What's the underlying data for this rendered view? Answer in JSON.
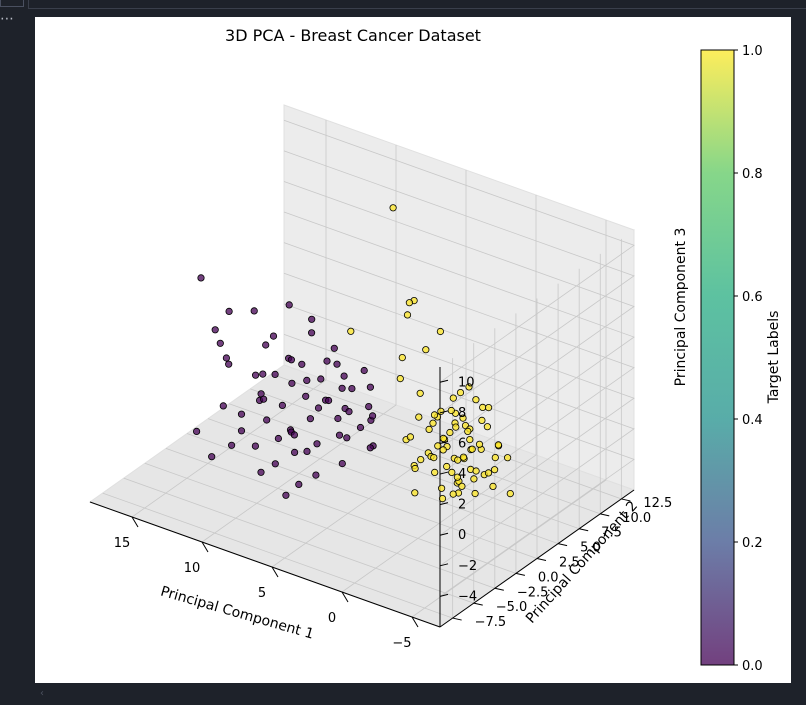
{
  "window": {
    "ellipsis": "⋯",
    "scroll_arrow": "‹"
  },
  "colors": {
    "background": "#1e222a",
    "figure": "#ffffff",
    "pane": "#f2f2f2",
    "grid": "#c8c8c8",
    "class0": "#440154",
    "class1": "#fde725"
  },
  "chart_data": {
    "type": "scatter3d",
    "title": "3D PCA - Breast Cancer Dataset",
    "xlabel": "Principal Component 1",
    "ylabel": "Principal Component 2",
    "zlabel": "Principal Component 3",
    "xlim": [
      -7,
      18
    ],
    "ylim": [
      -9,
      14
    ],
    "zlim": [
      -6,
      11
    ],
    "xticks": [
      -5,
      0,
      5,
      10,
      15
    ],
    "xtick_labels": [
      "−5",
      "0",
      "5",
      "10",
      "15"
    ],
    "yticks": [
      -7.5,
      -5.0,
      -2.5,
      0.0,
      2.5,
      5.0,
      7.5,
      10.0,
      12.5
    ],
    "ytick_labels": [
      "−7.5",
      "−5.0",
      "−2.5",
      "0.0",
      "2.5",
      "5.0",
      "7.5",
      "10.0",
      "12.5"
    ],
    "zticks": [
      -4,
      -2,
      0,
      2,
      4,
      6,
      8,
      10
    ],
    "ztick_labels": [
      "−4",
      "−2",
      "0",
      "2",
      "4",
      "6",
      "8",
      "10"
    ],
    "grid": true,
    "colormap": "viridis",
    "colorbar": {
      "label": "Target Labels",
      "range": [
        0.0,
        1.0
      ],
      "ticks": [
        0.0,
        0.2,
        0.4,
        0.6,
        0.8,
        1.0
      ],
      "tick_labels": [
        "0.0",
        "0.2",
        "0.4",
        "0.6",
        "0.8",
        "1.0"
      ]
    },
    "series": [
      {
        "target": 0,
        "color": "#440154",
        "points": [
          [
            8.2,
            -1.5,
            -1.0
          ],
          [
            10.1,
            -2.0,
            0.5
          ],
          [
            13.5,
            -0.3,
            1.5
          ],
          [
            17.0,
            2.5,
            4.5
          ],
          [
            6.5,
            1.2,
            2.8
          ],
          [
            9.0,
            0.0,
            1.2
          ],
          [
            16.5,
            5.0,
            1.5
          ],
          [
            11.0,
            3.0,
            4.5
          ],
          [
            7.0,
            -3.0,
            -1.5
          ],
          [
            14.6,
            -2.0,
            -3.0
          ],
          [
            12.0,
            -1.0,
            -2.5
          ],
          [
            8.8,
            -4.0,
            -3.0
          ],
          [
            5.5,
            0.5,
            0.5
          ],
          [
            4.0,
            0.8,
            1.0
          ],
          [
            9.5,
            2.0,
            1.5
          ],
          [
            11.5,
            0.5,
            -0.5
          ],
          [
            6.0,
            -2.0,
            -1.0
          ],
          [
            5.0,
            -1.0,
            -0.5
          ],
          [
            7.5,
            1.5,
            0.0
          ],
          [
            10.5,
            -0.5,
            -1.5
          ],
          [
            12.5,
            1.5,
            0.0
          ],
          [
            6.8,
            -0.5,
            0.5
          ],
          [
            8.0,
            2.5,
            2.0
          ],
          [
            4.5,
            -1.5,
            -2.0
          ],
          [
            9.8,
            -3.0,
            -2.0
          ],
          [
            13.0,
            -1.5,
            -1.0
          ],
          [
            5.8,
            1.8,
            1.2
          ],
          [
            7.8,
            0.2,
            -0.8
          ],
          [
            11.8,
            -2.5,
            -2.8
          ],
          [
            6.2,
            0.8,
            -0.5
          ],
          [
            3.8,
            -0.5,
            0.2
          ],
          [
            10.8,
            1.0,
            0.8
          ],
          [
            8.5,
            0.8,
            0.2
          ],
          [
            7.2,
            -1.2,
            -2.2
          ],
          [
            9.2,
            -0.8,
            0.0
          ],
          [
            5.2,
            0.2,
            -1.2
          ],
          [
            12.2,
            2.2,
            1.8
          ],
          [
            14.0,
            0.8,
            0.5
          ],
          [
            6.6,
            2.2,
            1.6
          ],
          [
            4.8,
            -0.2,
            0.8
          ],
          [
            8.9,
            1.6,
            0.8
          ],
          [
            10.3,
            -1.2,
            0.2
          ],
          [
            7.6,
            -2.4,
            -0.6
          ],
          [
            11.2,
            0.2,
            1.0
          ],
          [
            9.6,
            0.6,
            2.4
          ],
          [
            13.8,
            3.5,
            3.0
          ],
          [
            5.6,
            -2.8,
            -2.6
          ],
          [
            7.9,
            3.2,
            2.6
          ],
          [
            15.2,
            1.2,
            2.2
          ],
          [
            10.0,
            4.0,
            3.5
          ],
          [
            6.4,
            -3.5,
            -3.2
          ],
          [
            8.4,
            -2.6,
            -1.2
          ],
          [
            4.2,
            1.4,
            -0.2
          ],
          [
            3.2,
            0.0,
            -1.0
          ],
          [
            2.8,
            -1.0,
            -0.6
          ],
          [
            12.8,
            -3.2,
            -3.6
          ],
          [
            9.4,
            3.0,
            3.2
          ],
          [
            7.3,
            0.6,
            1.8
          ],
          [
            11.4,
            1.8,
            2.8
          ],
          [
            5.4,
            2.6,
            2.2
          ],
          [
            15.8,
            2.8,
            0.5
          ],
          [
            6.9,
            -4.2,
            -3.8
          ],
          [
            4.6,
            2.0,
            1.6
          ],
          [
            8.7,
            -0.2,
            -2.0
          ],
          [
            10.6,
            2.6,
            1.2
          ],
          [
            3.6,
            0.6,
            0.6
          ],
          [
            12.6,
            0.0,
            -2.0
          ],
          [
            9.1,
            -1.8,
            -3.4
          ],
          [
            7.1,
            2.8,
            0.4
          ],
          [
            5.9,
            -0.8,
            1.4
          ]
        ]
      },
      {
        "target": 1,
        "color": "#fde725",
        "points": [
          [
            -2.0,
            1.0,
            -0.5
          ],
          [
            -3.0,
            0.5,
            0.0
          ],
          [
            -1.5,
            -0.5,
            -1.0
          ],
          [
            -2.5,
            2.0,
            0.5
          ],
          [
            -3.5,
            -1.0,
            -1.5
          ],
          [
            -1.0,
            1.5,
            0.2
          ],
          [
            -2.2,
            -0.2,
            0.8
          ],
          [
            -4.0,
            0.0,
            -0.8
          ],
          [
            -1.8,
            0.8,
            1.2
          ],
          [
            -2.8,
            1.6,
            -1.2
          ],
          [
            -0.5,
            0.4,
            -0.4
          ],
          [
            -3.2,
            -0.6,
            0.4
          ],
          [
            -1.2,
            2.4,
            1.0
          ],
          [
            -2.6,
            -1.4,
            -2.0
          ],
          [
            -3.8,
            1.2,
            0.6
          ],
          [
            -0.8,
            -1.0,
            -0.2
          ],
          [
            -2.4,
            0.2,
            -2.4
          ],
          [
            -1.6,
            1.8,
            2.0
          ],
          [
            -3.4,
            2.6,
            1.4
          ],
          [
            -4.4,
            -0.4,
            0.0
          ],
          [
            -0.2,
            1.0,
            0.8
          ],
          [
            -2.9,
            -2.0,
            -1.0
          ],
          [
            -1.4,
            0.0,
            2.4
          ],
          [
            -3.6,
            0.8,
            -2.2
          ],
          [
            -2.1,
            2.8,
            -0.6
          ],
          [
            -4.8,
            1.6,
            1.0
          ],
          [
            -1.9,
            -1.6,
            0.6
          ],
          [
            -0.6,
            2.0,
            -0.8
          ],
          [
            -3.1,
            0.2,
            2.8
          ],
          [
            -2.3,
            -0.8,
            1.6
          ],
          [
            -5.0,
            0.6,
            -1.2
          ],
          [
            -1.1,
            -2.2,
            -1.8
          ],
          [
            -2.7,
            3.2,
            2.2
          ],
          [
            -3.9,
            -1.8,
            -0.4
          ],
          [
            0.3,
            0.6,
            1.6
          ],
          [
            -1.7,
            1.2,
            -1.6
          ],
          [
            -4.2,
            2.2,
            -0.2
          ],
          [
            -2.0,
            -0.6,
            3.2
          ],
          [
            -0.9,
            3.0,
            0.4
          ],
          [
            -3.3,
            1.4,
            3.6
          ],
          [
            0.8,
            1.6,
            2.6
          ],
          [
            1.5,
            0.4,
            3.8
          ],
          [
            -5.6,
            -0.2,
            0.4
          ],
          [
            -1.3,
            -2.6,
            0.2
          ],
          [
            -3.7,
            3.4,
            0.0
          ],
          [
            2.2,
            1.8,
            4.4
          ],
          [
            -2.5,
            0.9,
            4.0
          ],
          [
            0.0,
            -1.4,
            1.0
          ],
          [
            -4.6,
            -1.2,
            1.8
          ],
          [
            -1.6,
            2.2,
            -2.6
          ],
          [
            -2.8,
            1.0,
            1.9
          ],
          [
            -3.0,
            -0.3,
            -0.9
          ],
          [
            -1.0,
            0.7,
            0.1
          ],
          [
            -2.2,
            2.5,
            0.9
          ],
          [
            -3.6,
            1.9,
            -1.4
          ],
          [
            -1.8,
            -1.1,
            0.3
          ],
          [
            -4.1,
            0.5,
            1.3
          ],
          [
            -0.4,
            1.3,
            1.7
          ],
          [
            -2.6,
            -0.9,
            -0.1
          ],
          [
            -3.3,
            2.9,
            2.5
          ],
          [
            1.0,
            2.6,
            5.0
          ],
          [
            0.5,
            3.5,
            6.0
          ],
          [
            2.8,
            4.2,
            7.0
          ],
          [
            -6.0,
            1.0,
            -1.5
          ],
          [
            -1.2,
            -0.2,
            2.0
          ],
          [
            -2.9,
            0.4,
            -1.8
          ],
          [
            -0.7,
            2.8,
            1.5
          ],
          [
            -3.8,
            -0.9,
            0.9
          ],
          [
            -1.5,
            1.7,
            3.0
          ],
          [
            -2.4,
            3.6,
            1.1
          ],
          [
            -5.2,
            2.0,
            0.2
          ],
          [
            0.6,
            0.1,
            0.4
          ],
          [
            -3.5,
            0.1,
            2.1
          ],
          [
            -1.9,
            2.9,
            3.4
          ],
          [
            -4.5,
            0.9,
            -0.6
          ],
          [
            -0.1,
            -0.5,
            -1.2
          ],
          [
            9.0,
            12.0,
            8.0
          ],
          [
            3.5,
            4.8,
            6.4
          ],
          [
            4.0,
            5.4,
            5.2
          ],
          [
            6.0,
            2.0,
            4.8
          ]
        ]
      }
    ]
  }
}
